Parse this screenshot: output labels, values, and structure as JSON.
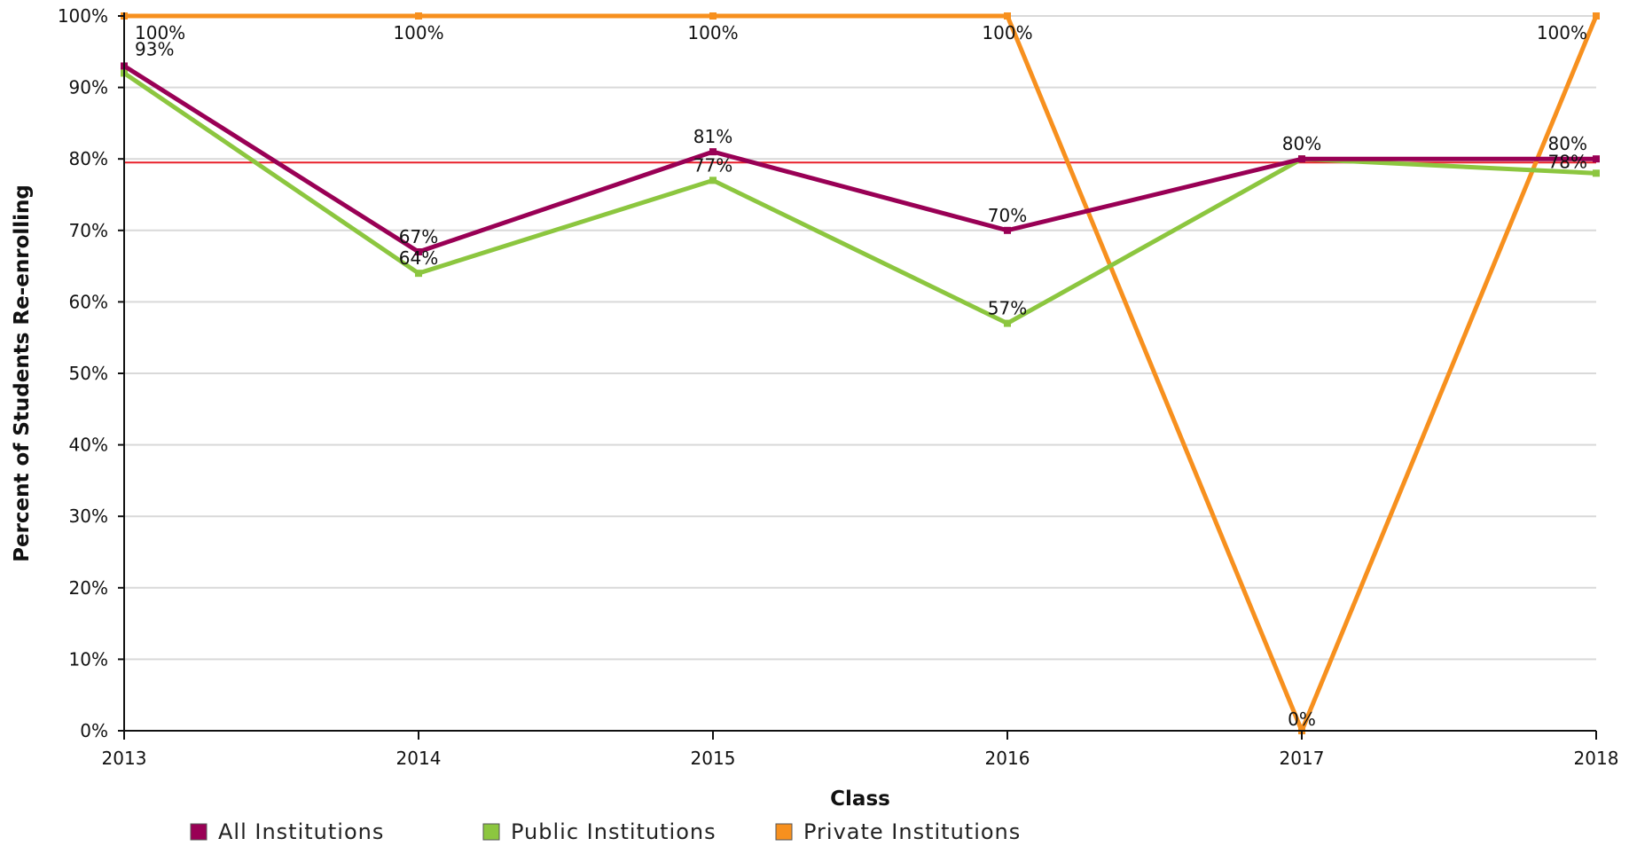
{
  "chart_data": {
    "type": "line",
    "xlabel": "Class",
    "ylabel": "Percent of Students Re-enrolling",
    "categories": [
      "2013",
      "2014",
      "2015",
      "2016",
      "2017",
      "2018"
    ],
    "ylim": [
      0,
      100
    ],
    "yticks": [
      0,
      10,
      20,
      30,
      40,
      50,
      60,
      70,
      80,
      90,
      100
    ],
    "ytick_labels": [
      "0%",
      "10%",
      "20%",
      "30%",
      "40%",
      "50%",
      "60%",
      "70%",
      "80%",
      "90%",
      "100%"
    ],
    "reference_line": {
      "value": 79.5,
      "color": "#e8202a"
    },
    "grid": true,
    "legend_position": "bottom-left",
    "series": [
      {
        "name": "All Institutions",
        "color": "#990055",
        "values": [
          93,
          67,
          81,
          70,
          80,
          80
        ],
        "labels": [
          "93%",
          "67%",
          "81%",
          "70%",
          "80%",
          "80%"
        ]
      },
      {
        "name": "Public Institutions",
        "color": "#8cc63f",
        "values": [
          92,
          64,
          77,
          57,
          80,
          78
        ],
        "labels": [
          "",
          "64%",
          "77%",
          "57%",
          "",
          "78%"
        ]
      },
      {
        "name": "Private Institutions",
        "color": "#f7901e",
        "values": [
          100,
          100,
          100,
          100,
          0,
          100
        ],
        "labels": [
          "100%",
          "100%",
          "100%",
          "100%",
          "0%",
          "100%"
        ]
      }
    ]
  }
}
